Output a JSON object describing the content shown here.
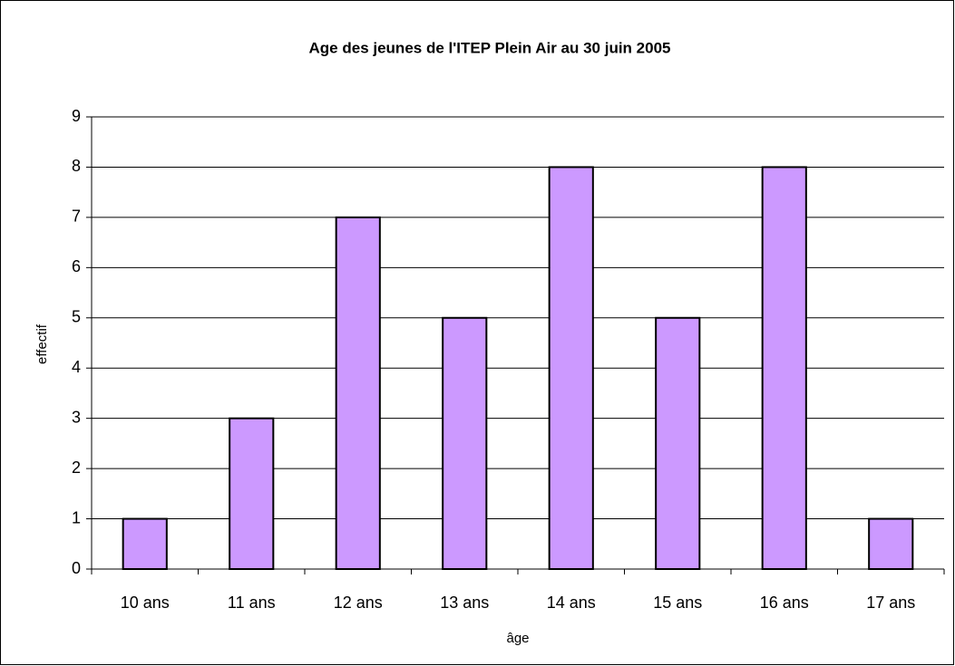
{
  "chart_data": {
    "type": "bar",
    "title": "Age des jeunes de l'ITEP Plein Air au 30 juin 2005",
    "x_label": "âge",
    "y_label": "effectif",
    "categories": [
      "10 ans",
      "11 ans",
      "12 ans",
      "13 ans",
      "14 ans",
      "15 ans",
      "16 ans",
      "17 ans"
    ],
    "values": [
      1,
      3,
      7,
      5,
      8,
      5,
      8,
      1
    ],
    "color": "#cc99ff",
    "ylim": [
      0,
      9
    ],
    "yticks": [
      0,
      1,
      2,
      3,
      4,
      5,
      6,
      7,
      8,
      9
    ],
    "grid": true
  }
}
